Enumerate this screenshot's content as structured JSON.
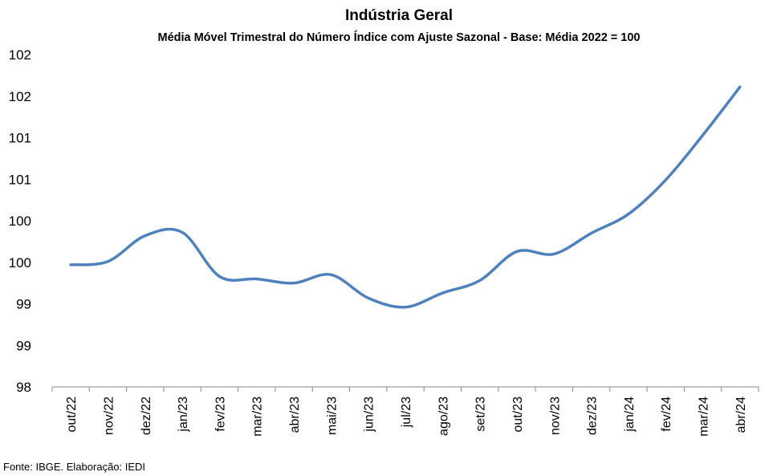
{
  "chart_data": {
    "type": "line",
    "title": "Indústria Geral",
    "subtitle": "Média Móvel Trimestral do Número Índice com Ajuste Sazonal - Base: Média 2022 = 100",
    "source": "Fonte: IBGE. Elaboração: IEDI",
    "categories": [
      "out/22",
      "nov/22",
      "dez/22",
      "jan/23",
      "fev/23",
      "mar/23",
      "abr/23",
      "mai/23",
      "jun/23",
      "jul/23",
      "ago/23",
      "set/23",
      "out/23",
      "nov/23",
      "dez/23",
      "jan/24",
      "fev/24",
      "mar/24",
      "abr/24"
    ],
    "series": [
      {
        "values": [
          99.47,
          99.51,
          99.82,
          99.86,
          99.33,
          99.3,
          99.25,
          99.35,
          99.07,
          98.96,
          99.13,
          99.28,
          99.63,
          99.6,
          99.85,
          100.08,
          100.49,
          101.03,
          101.61
        ]
      }
    ],
    "y_tick_labels": [
      "98",
      "99",
      "99",
      "100",
      "100",
      "101",
      "101",
      "102",
      "102"
    ],
    "ylim": [
      98,
      102
    ],
    "grid": false,
    "legend": "none",
    "line_color": "#4F81BD"
  }
}
